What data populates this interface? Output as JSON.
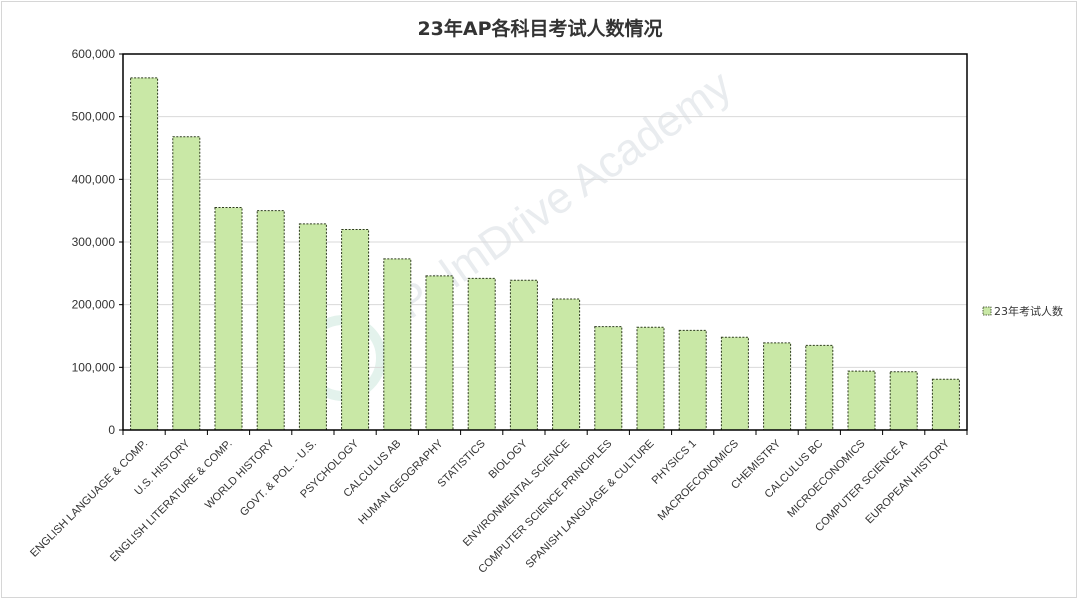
{
  "chart_data": {
    "type": "bar",
    "title": "23年AP各科目考试人数情况",
    "xlabel": "",
    "ylabel": "",
    "ylim": [
      0,
      600000
    ],
    "yticks": [
      0,
      100000,
      200000,
      300000,
      400000,
      500000,
      600000
    ],
    "ytick_labels": [
      "0",
      "100,000",
      "200,000",
      "300,000",
      "400,000",
      "500,000",
      "600,000"
    ],
    "grid": true,
    "legend_position": "right",
    "categories": [
      "ENGLISH LANGUAGE & COMP.",
      "U.S. HISTORY",
      "ENGLISH LITERATURE & COMP.",
      "WORLD HISTORY",
      "GOVT. & POL. - U.S.",
      "PSYCHOLOGY",
      "CALCULUS AB",
      "HUMAN GEOGRAPHY",
      "STATISTICS",
      "BIOLOGY",
      "ENVIRONMENTAL SCIENCE",
      "COMPUTER SCIENCE PRINCIPLES",
      "SPANISH LANGUAGE & CULTURE",
      "PHYSICS 1",
      "MACROECONOMICS",
      "CHEMISTRY",
      "CALCULUS BC",
      "MICROECONOMICS",
      "COMPUTER SCIENCE A",
      "EUROPEAN HISTORY"
    ],
    "series": [
      {
        "name": "23年考试人数",
        "values": [
          562000,
          468000,
          355000,
          350000,
          329000,
          320000,
          273000,
          246000,
          242000,
          239000,
          209000,
          165000,
          164000,
          159000,
          148000,
          139000,
          135000,
          94000,
          93000,
          81000
        ]
      }
    ]
  },
  "watermark": {
    "text": "PalmDrive Academy"
  },
  "colors": {
    "bar_fill": "#c9e8a6",
    "bar_border": "#2d3a1e",
    "grid": "#d9d9d9",
    "axis": "#000000",
    "text": "#333333"
  }
}
